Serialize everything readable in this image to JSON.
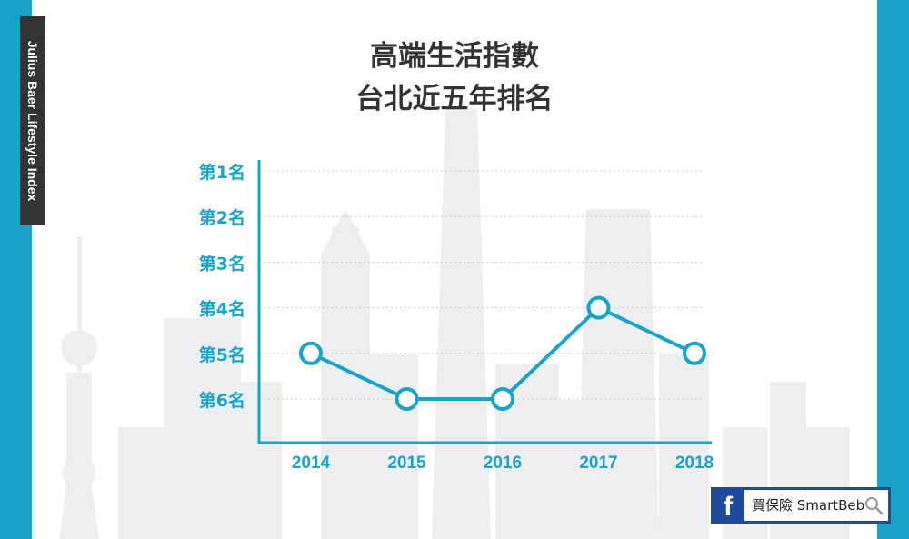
{
  "title_line1": "高端生活指數",
  "title_line2": "台北近五年排名",
  "side_label": "Julius Baer Lifestyle Index",
  "badge": {
    "icon": "facebook-icon",
    "text": "買保險 SmartBeb",
    "search_icon": "search-icon"
  },
  "colors": {
    "accent": "#1aa3c8",
    "title": "#333333",
    "badge_blue": "#1e4c9a"
  },
  "chart_data": {
    "type": "line",
    "title": "高端生活指數 台北近五年排名",
    "categories": [
      "2014",
      "2015",
      "2016",
      "2017",
      "2018"
    ],
    "series": [
      {
        "values": [
          5,
          6,
          6,
          4,
          5
        ]
      }
    ],
    "y_tick_labels": [
      "第1名",
      "第2名",
      "第3名",
      "第4名",
      "第5名",
      "第6名"
    ],
    "y_reversed": true,
    "ylim": [
      1,
      6
    ],
    "grid": true,
    "grid_style": "dotted"
  }
}
